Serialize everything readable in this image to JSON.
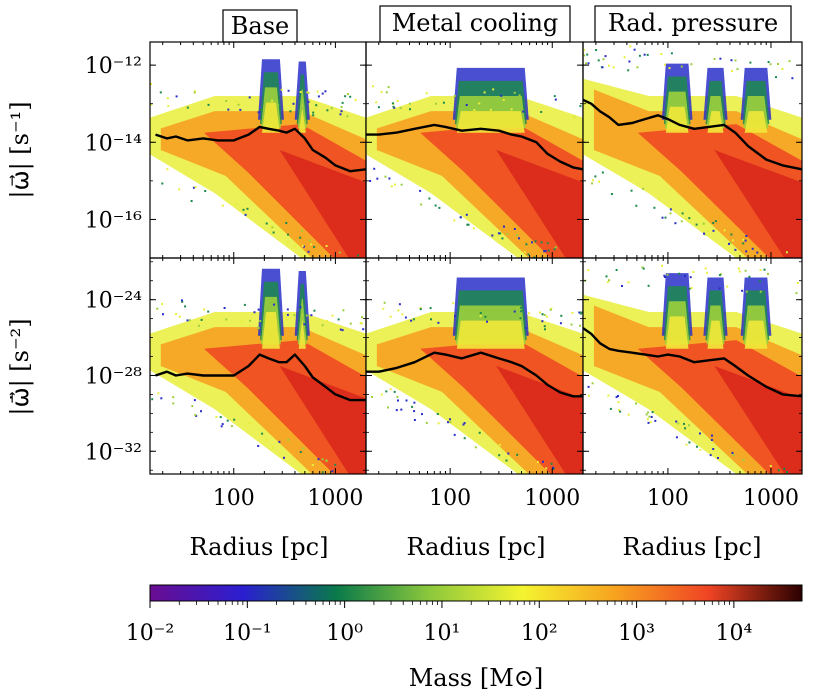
{
  "chart_data": {
    "type": "heatmap",
    "layout": "2x3 grid of 2D mass-weighted histograms",
    "columns": [
      "Base",
      "Metal cooling",
      "Rad. pressure"
    ],
    "xlabel": "Radius [pc]",
    "x_scale": "log",
    "xlim": [
      15,
      2000
    ],
    "x_ticks": [
      100,
      1000
    ],
    "x_tick_labels": [
      "100",
      "1000"
    ],
    "rows": [
      {
        "ylabel": "|ω⃗| [s⁻¹]",
        "y_scale": "log",
        "ylim_exp": [
          -17,
          -11.4
        ],
        "y_ticks_exp": [
          -12,
          -14,
          -16
        ],
        "y_tick_labels": [
          "10⁻¹²",
          "10⁻¹⁴",
          "10⁻¹⁶"
        ]
      },
      {
        "ylabel": "|ω⃗̇| [s⁻²]",
        "y_scale": "log",
        "ylim_exp": [
          -33.2,
          -21.8
        ],
        "y_ticks_exp": [
          -24,
          -28,
          -32
        ],
        "y_tick_labels": [
          "10⁻²⁴",
          "10⁻²⁸",
          "10⁻³²"
        ]
      }
    ],
    "colorbar": {
      "label": "Mass [M⊙]",
      "scale": "log",
      "range_exp": [
        -2,
        4.7
      ],
      "tick_labels": [
        "10⁻²",
        "10⁻¹",
        "10⁰",
        "10¹",
        "10²",
        "10³",
        "10⁴"
      ],
      "colormap": [
        "#6a0d91",
        "#2a1fd0",
        "#0a7a4a",
        "#8cc83c",
        "#f4f430",
        "#f7a21f",
        "#ef4424",
        "#2a0000"
      ]
    },
    "median_series": [
      {
        "panel": "Base / row 1",
        "x": [
          17,
          22,
          27,
          35,
          50,
          70,
          100,
          140,
          180,
          220,
          280,
          330,
          400,
          500,
          600,
          800,
          1000,
          1400,
          2000
        ],
        "y_exp": [
          -13.8,
          -13.9,
          -13.85,
          -13.95,
          -13.9,
          -13.95,
          -13.95,
          -13.8,
          -13.6,
          -13.65,
          -13.7,
          -13.75,
          -13.65,
          -13.9,
          -14.2,
          -14.4,
          -14.6,
          -14.75,
          -14.7
        ]
      },
      {
        "panel": "Metal cooling / row 1",
        "x": [
          15,
          20,
          30,
          45,
          70,
          90,
          130,
          200,
          300,
          400,
          500,
          700,
          900,
          1200,
          1600,
          2000
        ],
        "y_exp": [
          -13.8,
          -13.8,
          -13.75,
          -13.65,
          -13.55,
          -13.6,
          -13.7,
          -13.65,
          -13.7,
          -13.8,
          -13.85,
          -14.0,
          -14.3,
          -14.5,
          -14.65,
          -14.7
        ]
      },
      {
        "panel": "Rad. pressure / row 1",
        "x": [
          15,
          18,
          22,
          27,
          33,
          45,
          60,
          80,
          100,
          130,
          180,
          250,
          350,
          450,
          600,
          900,
          1300,
          2000
        ],
        "y_exp": [
          -12.9,
          -13.0,
          -13.2,
          -13.35,
          -13.55,
          -13.5,
          -13.4,
          -13.3,
          -13.4,
          -13.55,
          -13.65,
          -13.6,
          -13.55,
          -13.75,
          -14.1,
          -14.45,
          -14.6,
          -14.7
        ]
      },
      {
        "panel": "Base / row 2",
        "x": [
          17,
          22,
          27,
          35,
          50,
          70,
          100,
          140,
          180,
          220,
          280,
          330,
          400,
          500,
          600,
          800,
          1000,
          1400,
          2000
        ],
        "y_exp": [
          -28.0,
          -27.8,
          -28.0,
          -27.9,
          -28.0,
          -28.0,
          -28.0,
          -27.5,
          -26.9,
          -27.1,
          -27.3,
          -27.3,
          -26.9,
          -27.5,
          -28.1,
          -28.6,
          -29.0,
          -29.3,
          -29.3
        ]
      },
      {
        "panel": "Metal cooling / row 2",
        "x": [
          15,
          20,
          30,
          45,
          70,
          90,
          130,
          200,
          300,
          400,
          500,
          700,
          900,
          1200,
          1600,
          2000
        ],
        "y_exp": [
          -27.8,
          -27.8,
          -27.6,
          -27.3,
          -26.8,
          -26.9,
          -27.1,
          -26.8,
          -27.1,
          -27.3,
          -27.5,
          -28.0,
          -28.5,
          -28.9,
          -29.1,
          -29.1
        ]
      },
      {
        "panel": "Rad. pressure / row 2",
        "x": [
          15,
          18,
          22,
          27,
          33,
          45,
          60,
          80,
          100,
          130,
          180,
          250,
          350,
          450,
          600,
          900,
          1300,
          2000
        ],
        "y_exp": [
          -25.5,
          -25.8,
          -26.3,
          -26.6,
          -26.7,
          -26.8,
          -26.9,
          -27.0,
          -26.9,
          -27.0,
          -27.3,
          -27.2,
          -27.1,
          -27.5,
          -28.0,
          -28.6,
          -29.0,
          -29.1
        ]
      }
    ]
  }
}
